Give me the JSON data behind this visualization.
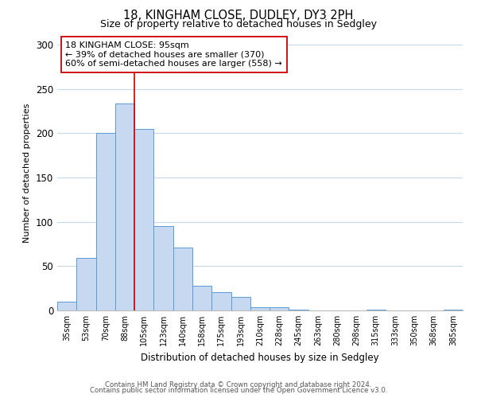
{
  "title": "18, KINGHAM CLOSE, DUDLEY, DY3 2PH",
  "subtitle": "Size of property relative to detached houses in Sedgley",
  "xlabel": "Distribution of detached houses by size in Sedgley",
  "ylabel": "Number of detached properties",
  "bar_labels": [
    "35sqm",
    "53sqm",
    "70sqm",
    "88sqm",
    "105sqm",
    "123sqm",
    "140sqm",
    "158sqm",
    "175sqm",
    "193sqm",
    "210sqm",
    "228sqm",
    "245sqm",
    "263sqm",
    "280sqm",
    "298sqm",
    "315sqm",
    "333sqm",
    "350sqm",
    "368sqm",
    "385sqm"
  ],
  "bar_values": [
    10,
    59,
    200,
    234,
    205,
    95,
    71,
    28,
    21,
    15,
    4,
    4,
    1,
    0,
    0,
    0,
    1,
    0,
    0,
    0,
    1
  ],
  "bar_color": "#c6d9f0",
  "bar_edge_color": "#5b9bd5",
  "ylim": [
    0,
    310
  ],
  "yticks": [
    0,
    50,
    100,
    150,
    200,
    250,
    300
  ],
  "vline_color": "#cc0000",
  "annotation_title": "18 KINGHAM CLOSE: 95sqm",
  "annotation_line1": "← 39% of detached houses are smaller (370)",
  "annotation_line2": "60% of semi-detached houses are larger (558) →",
  "annotation_box_color": "#ffffff",
  "annotation_box_edge": "#cc0000",
  "footer_line1": "Contains HM Land Registry data © Crown copyright and database right 2024.",
  "footer_line2": "Contains public sector information licensed under the Open Government Licence v3.0.",
  "background_color": "#ffffff",
  "grid_color": "#c8d8eb"
}
